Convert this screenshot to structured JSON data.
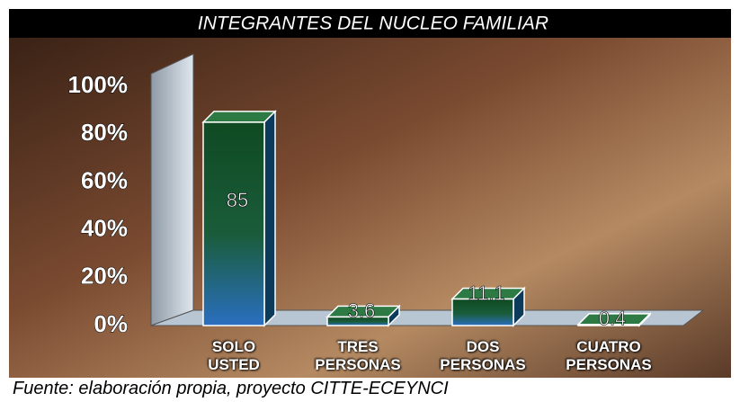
{
  "chart_data": {
    "type": "bar3d",
    "title": "INTEGRANTES DEL NUCLEO FAMILIAR",
    "categories": [
      "SOLO USTED",
      "TRES PERSONAS",
      "DOS PERSONAS",
      "CUATRO PERSONAS"
    ],
    "values": [
      85,
      3.6,
      11.1,
      0.4
    ],
    "ylim": [
      0,
      100
    ],
    "yticks": [
      {
        "value": 0,
        "label": "0%"
      },
      {
        "value": 20,
        "label": "20%"
      },
      {
        "value": 40,
        "label": "40%"
      },
      {
        "value": 60,
        "label": "60%"
      },
      {
        "value": 80,
        "label": "80%"
      },
      {
        "value": 100,
        "label": "100%"
      }
    ],
    "source": "Fuente: elaboración propia, proyecto CITTE-ECEYNCI"
  }
}
